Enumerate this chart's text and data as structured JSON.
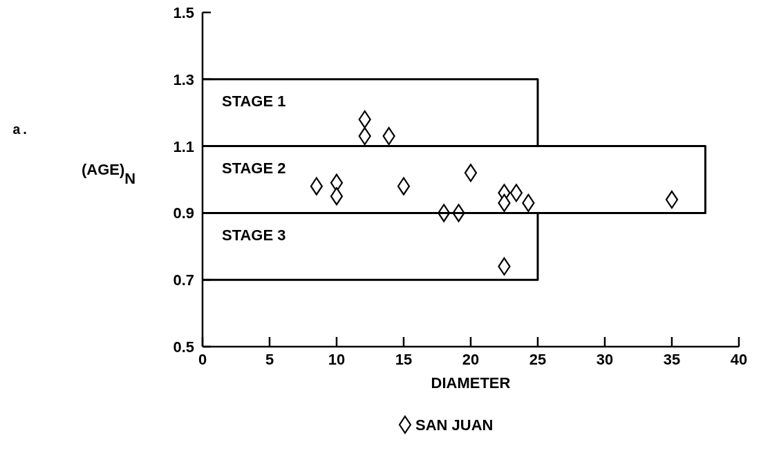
{
  "chart_data": {
    "type": "scatter",
    "xlabel": "DIAMETER",
    "ylabel": "(AGE)$_{N}$",
    "xlim": [
      0,
      40
    ],
    "xticks": [
      0,
      5,
      10,
      15,
      20,
      25,
      30,
      35,
      40
    ],
    "ylim": [
      0.5,
      1.5
    ],
    "yticks": [
      0.5,
      0.7,
      0.9,
      1.1,
      1.3,
      1.5
    ],
    "grid": false,
    "legend": "bottom",
    "marker": "diamond",
    "series": [
      {
        "name": "SAN JUAN",
        "color": "#000000",
        "x": [
          8.5,
          10,
          10,
          12.1,
          12.1,
          13.9,
          15,
          18,
          19.1,
          20,
          22.5,
          22.5,
          23.4,
          24.3,
          22.5,
          35
        ],
        "values": [
          0.98,
          0.99,
          0.95,
          1.18,
          1.13,
          1.13,
          0.98,
          0.9,
          0.9,
          1.02,
          0.96,
          0.93,
          0.96,
          0.93,
          0.74,
          0.94
        ]
      },
      {
        "type": "line",
        "color": "#000000",
        "marker": "none",
        "x": [
          0,
          25,
          25
        ],
        "values": [
          1.3,
          1.3,
          1.1
        ]
      },
      {
        "type": "line",
        "color": "#000000",
        "marker": "none",
        "x": [
          0,
          37.5,
          37.5,
          0
        ],
        "values": [
          1.1,
          1.1,
          0.9,
          0.9
        ]
      },
      {
        "type": "line",
        "color": "#000000",
        "marker": "none",
        "x": [
          25,
          25,
          0
        ],
        "values": [
          0.9,
          0.7,
          0.7
        ]
      }
    ],
    "annotations": [
      "a.",
      "STAGE 1",
      "STAGE 2",
      "STAGE 3"
    ]
  }
}
